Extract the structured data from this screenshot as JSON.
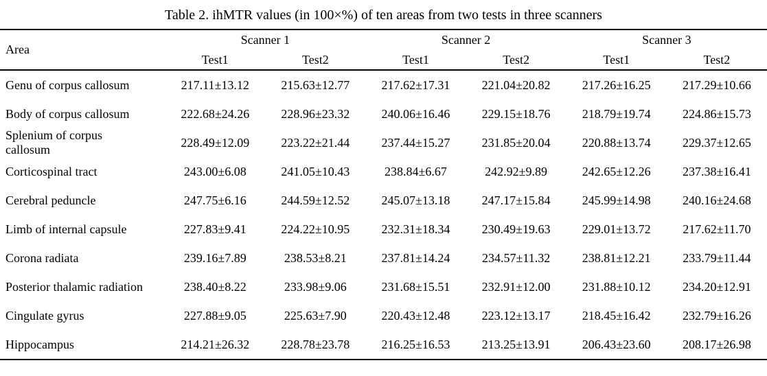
{
  "title": "Table 2. ihMTR values (in 100×%) of ten areas from two tests in three scanners",
  "table": {
    "area_header": "Area",
    "scanner_groups": [
      {
        "label": "Scanner 1"
      },
      {
        "label": "Scanner 2"
      },
      {
        "label": "Scanner 3"
      }
    ],
    "test_headers": [
      "Test1",
      "Test2",
      "Test1",
      "Test2",
      "Test1",
      "Test2"
    ],
    "rows": [
      {
        "area": "Genu of corpus callosum",
        "values": [
          "217.11±13.12",
          "215.63±12.77",
          "217.62±17.31",
          "221.04±20.82",
          "217.26±16.25",
          "217.29±10.66"
        ]
      },
      {
        "area": "Body of corpus callosum",
        "values": [
          "222.68±24.26",
          "228.96±23.32",
          "240.06±16.46",
          "229.15±18.76",
          "218.79±19.74",
          "224.86±15.73"
        ]
      },
      {
        "area": "Splenium of corpus\ncallosum",
        "values": [
          "228.49±12.09",
          "223.22±21.44",
          "237.44±15.27",
          "231.85±20.04",
          "220.88±13.74",
          "229.37±12.65"
        ]
      },
      {
        "area": "Corticospinal tract",
        "values": [
          "243.00±6.08",
          "241.05±10.43",
          "238.84±6.67",
          "242.92±9.89",
          "242.65±12.26",
          "237.38±16.41"
        ]
      },
      {
        "area": "Cerebral peduncle",
        "values": [
          "247.75±6.16",
          "244.59±12.52",
          "245.07±13.18",
          "247.17±15.84",
          "245.99±14.98",
          "240.16±24.68"
        ]
      },
      {
        "area": "Limb of internal capsule",
        "values": [
          "227.83±9.41",
          "224.22±10.95",
          "232.31±18.34",
          "230.49±19.63",
          "229.01±13.72",
          "217.62±11.70"
        ]
      },
      {
        "area": "Corona radiata",
        "values": [
          "239.16±7.89",
          "238.53±8.21",
          "237.81±14.24",
          "234.57±11.32",
          "238.81±12.21",
          "233.79±11.44"
        ]
      },
      {
        "area": "Posterior thalamic radiation",
        "values": [
          "238.40±8.22",
          "233.98±9.06",
          "231.68±15.51",
          "232.91±12.00",
          "231.88±10.12",
          "234.20±12.91"
        ]
      },
      {
        "area": "Cingulate gyrus",
        "values": [
          "227.88±9.05",
          "225.63±7.90",
          "220.43±12.48",
          "223.12±13.17",
          "218.45±16.42",
          "232.79±16.26"
        ]
      },
      {
        "area": "Hippocampus",
        "values": [
          "214.21±26.32",
          "228.78±23.78",
          "216.25±16.53",
          "213.25±13.91",
          "206.43±23.60",
          "208.17±26.98"
        ]
      }
    ]
  }
}
